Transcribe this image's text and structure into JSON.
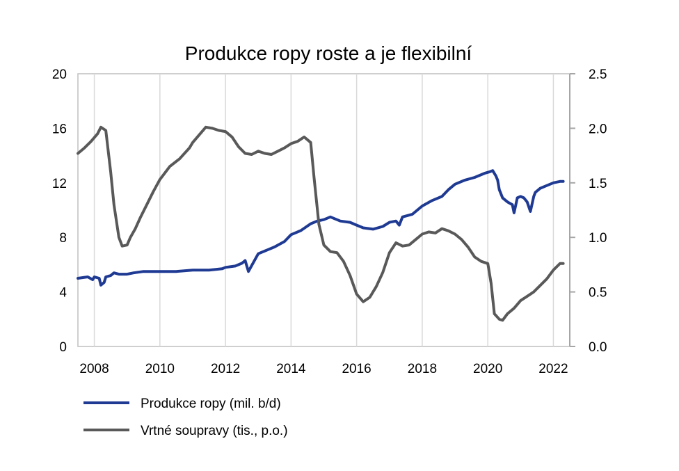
{
  "chart_data": {
    "type": "line",
    "title": "Produkce ropy roste a je flexibilní",
    "x_ticks": [
      "2008",
      "2010",
      "2012",
      "2014",
      "2016",
      "2018",
      "2020",
      "2022"
    ],
    "x_tick_values": [
      2008,
      2010,
      2012,
      2014,
      2016,
      2018,
      2020,
      2022
    ],
    "xlim": [
      2007.5,
      2022.5
    ],
    "y_left_ticks": [
      "0",
      "4",
      "8",
      "12",
      "16",
      "20"
    ],
    "y_left_tick_values": [
      0,
      4,
      8,
      12,
      16,
      20
    ],
    "ylim_left": [
      0,
      20
    ],
    "y_right_ticks": [
      "0.0",
      "0.5",
      "1.0",
      "1.5",
      "2.0",
      "2.5"
    ],
    "y_right_tick_values": [
      0,
      0.5,
      1,
      1.5,
      2,
      2.5
    ],
    "ylim_right": [
      0,
      2.5
    ],
    "grid": "vertical",
    "legend_position": "bottom-left",
    "series": [
      {
        "name": "Produkce ropy (mil. b/d)",
        "axis": "left",
        "color": "#1f3a93",
        "x": [
          2007.5,
          2007.8,
          2007.95,
          2008.0,
          2008.15,
          2008.2,
          2008.3,
          2008.35,
          2008.5,
          2008.6,
          2008.75,
          2009.0,
          2009.2,
          2009.5,
          2010.0,
          2010.5,
          2011.0,
          2011.5,
          2011.9,
          2012.0,
          2012.3,
          2012.5,
          2012.6,
          2012.7,
          2013.0,
          2013.5,
          2013.8,
          2014.0,
          2014.3,
          2014.6,
          2014.8,
          2015.0,
          2015.2,
          2015.5,
          2015.8,
          2016.0,
          2016.2,
          2016.5,
          2016.8,
          2017.0,
          2017.2,
          2017.3,
          2017.4,
          2017.7,
          2018.0,
          2018.3,
          2018.6,
          2018.8,
          2019.0,
          2019.3,
          2019.6,
          2019.9,
          2020.05,
          2020.15,
          2020.25,
          2020.3,
          2020.35,
          2020.45,
          2020.6,
          2020.75,
          2020.8,
          2020.9,
          2021.0,
          2021.1,
          2021.2,
          2021.3,
          2021.4,
          2021.45,
          2021.6,
          2021.8,
          2022.0,
          2022.2,
          2022.3
        ],
        "values": [
          5.0,
          5.1,
          4.9,
          5.1,
          5.0,
          4.5,
          4.7,
          5.1,
          5.2,
          5.4,
          5.3,
          5.3,
          5.4,
          5.5,
          5.5,
          5.5,
          5.6,
          5.6,
          5.7,
          5.8,
          5.9,
          6.1,
          6.3,
          5.5,
          6.8,
          7.3,
          7.7,
          8.2,
          8.5,
          9.0,
          9.2,
          9.3,
          9.5,
          9.2,
          9.1,
          8.9,
          8.7,
          8.6,
          8.8,
          9.1,
          9.2,
          8.9,
          9.5,
          9.7,
          10.3,
          10.7,
          11.0,
          11.5,
          11.9,
          12.2,
          12.4,
          12.7,
          12.8,
          12.9,
          12.5,
          12.2,
          11.5,
          10.9,
          10.6,
          10.4,
          9.8,
          10.9,
          11.0,
          10.9,
          10.6,
          9.9,
          11.0,
          11.3,
          11.6,
          11.8,
          12.0,
          12.1,
          12.1
        ]
      },
      {
        "name": "Vrtné soupravy (tis., p.o.)",
        "axis": "right",
        "color": "#595959",
        "x": [
          2007.5,
          2007.7,
          2007.9,
          2008.1,
          2008.2,
          2008.35,
          2008.5,
          2008.6,
          2008.75,
          2008.85,
          2009.0,
          2009.1,
          2009.25,
          2009.4,
          2009.6,
          2009.8,
          2010.0,
          2010.3,
          2010.6,
          2010.9,
          2011.0,
          2011.2,
          2011.4,
          2011.6,
          2011.8,
          2012.0,
          2012.2,
          2012.4,
          2012.6,
          2012.8,
          2013.0,
          2013.2,
          2013.4,
          2013.6,
          2013.8,
          2014.0,
          2014.2,
          2014.4,
          2014.6,
          2014.7,
          2014.85,
          2015.0,
          2015.2,
          2015.4,
          2015.6,
          2015.8,
          2016.0,
          2016.2,
          2016.4,
          2016.6,
          2016.8,
          2017.0,
          2017.2,
          2017.4,
          2017.6,
          2017.8,
          2018.0,
          2018.2,
          2018.4,
          2018.6,
          2018.8,
          2019.0,
          2019.2,
          2019.4,
          2019.6,
          2019.8,
          2020.0,
          2020.1,
          2020.2,
          2020.35,
          2020.45,
          2020.6,
          2020.8,
          2021.0,
          2021.2,
          2021.4,
          2021.6,
          2021.8,
          2022.0,
          2022.2,
          2022.3
        ],
        "values": [
          1.77,
          1.82,
          1.88,
          1.95,
          2.01,
          1.98,
          1.6,
          1.3,
          1.0,
          0.92,
          0.93,
          1.0,
          1.08,
          1.18,
          1.3,
          1.42,
          1.53,
          1.65,
          1.72,
          1.82,
          1.87,
          1.94,
          2.01,
          2.0,
          1.98,
          1.97,
          1.92,
          1.83,
          1.77,
          1.76,
          1.79,
          1.77,
          1.76,
          1.79,
          1.82,
          1.86,
          1.88,
          1.92,
          1.87,
          1.55,
          1.12,
          0.93,
          0.87,
          0.86,
          0.78,
          0.65,
          0.48,
          0.41,
          0.45,
          0.55,
          0.68,
          0.86,
          0.95,
          0.92,
          0.93,
          0.98,
          1.03,
          1.05,
          1.04,
          1.08,
          1.06,
          1.03,
          0.98,
          0.91,
          0.82,
          0.78,
          0.76,
          0.58,
          0.3,
          0.25,
          0.24,
          0.3,
          0.35,
          0.42,
          0.46,
          0.5,
          0.56,
          0.62,
          0.7,
          0.76,
          0.76
        ]
      }
    ]
  }
}
